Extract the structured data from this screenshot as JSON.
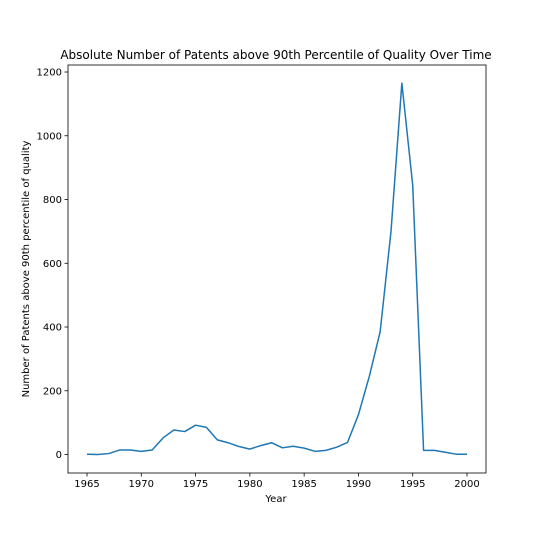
{
  "chart_data": {
    "type": "line",
    "title": "Absolute Number of Patents above 90th Percentile of Quality Over Time",
    "xlabel": "Year",
    "ylabel": "Number of Patents above 90th percentile of quality",
    "xlim": [
      1963.25,
      2001.75
    ],
    "ylim": [
      -58,
      1222
    ],
    "xticks": [
      1965,
      1970,
      1975,
      1980,
      1985,
      1990,
      1995,
      2000
    ],
    "yticks": [
      0,
      200,
      400,
      600,
      800,
      1000,
      1200
    ],
    "grid": false,
    "legend": "none",
    "series": [
      {
        "color": "#1f77b4",
        "x": [
          1965,
          1966,
          1967,
          1968,
          1969,
          1970,
          1971,
          1972,
          1973,
          1974,
          1975,
          1976,
          1977,
          1978,
          1979,
          1980,
          1981,
          1982,
          1983,
          1984,
          1985,
          1986,
          1987,
          1988,
          1989,
          1990,
          1991,
          1992,
          1993,
          1994,
          1995,
          1996,
          1997,
          1998,
          1999,
          2000
        ],
        "y": [
          1,
          0,
          3,
          14,
          14,
          10,
          14,
          52,
          77,
          72,
          92,
          85,
          46,
          37,
          25,
          17,
          28,
          37,
          21,
          26,
          20,
          10,
          13,
          23,
          38,
          125,
          245,
          385,
          700,
          1165,
          845,
          13,
          13,
          7,
          1,
          1
        ]
      }
    ]
  }
}
